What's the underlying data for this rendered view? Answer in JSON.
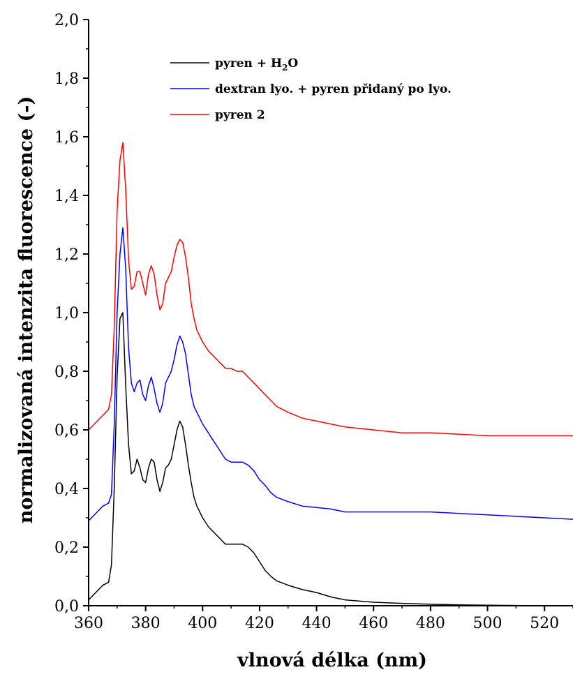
{
  "chart_data": {
    "type": "line",
    "title": "",
    "xlabel": "vlnová délka (nm)",
    "ylabel": "normalizovaná intenzita fluorescence (-)",
    "xlim": [
      360,
      530
    ],
    "ylim": [
      0.0,
      2.0
    ],
    "x_ticks": [
      360,
      380,
      400,
      420,
      440,
      460,
      480,
      500,
      520
    ],
    "x_tick_labels": [
      "360",
      "380",
      "400",
      "420",
      "440",
      "460",
      "480",
      "500",
      "520"
    ],
    "y_ticks": [
      0.0,
      0.2,
      0.4,
      0.6,
      0.8,
      1.0,
      1.2,
      1.4,
      1.6,
      1.8,
      2.0
    ],
    "y_tick_labels": [
      "0,0",
      "0,2",
      "0,4",
      "0,6",
      "0,8",
      "1,0",
      "1,2",
      "1,4",
      "1,6",
      "1,8",
      "2,0"
    ],
    "grid": false,
    "legend_position": "top-center",
    "series": [
      {
        "name": "pyren + H2O",
        "legend_main": "pyren + H",
        "legend_sub": "2",
        "legend_tail": "O",
        "color": "#000000",
        "x": [
          360,
          363,
          365,
          367,
          368,
          369,
          370,
          371,
          372,
          373,
          374,
          375,
          376,
          377,
          378,
          379,
          380,
          381,
          382,
          383,
          384,
          385,
          386,
          387,
          388,
          389,
          390,
          391,
          392,
          393,
          394,
          395,
          396,
          397,
          398,
          400,
          402,
          404,
          406,
          408,
          410,
          412,
          414,
          416,
          418,
          420,
          422,
          424,
          426,
          430,
          435,
          440,
          445,
          450,
          460,
          470,
          480,
          490,
          500,
          510,
          520,
          530
        ],
        "y": [
          0.02,
          0.05,
          0.07,
          0.08,
          0.14,
          0.4,
          0.78,
          0.98,
          1.0,
          0.75,
          0.55,
          0.45,
          0.46,
          0.5,
          0.47,
          0.43,
          0.42,
          0.47,
          0.5,
          0.49,
          0.43,
          0.39,
          0.42,
          0.47,
          0.48,
          0.5,
          0.55,
          0.6,
          0.63,
          0.61,
          0.55,
          0.48,
          0.42,
          0.37,
          0.34,
          0.3,
          0.27,
          0.25,
          0.23,
          0.21,
          0.21,
          0.21,
          0.21,
          0.2,
          0.18,
          0.15,
          0.12,
          0.1,
          0.085,
          0.07,
          0.055,
          0.045,
          0.03,
          0.02,
          0.012,
          0.008,
          0.005,
          0.003,
          0.002,
          0.001,
          0.0,
          0.0
        ]
      },
      {
        "name": "dextran lyo. + pyren přidaný po lyo.",
        "color": "#0000ff",
        "x": [
          360,
          363,
          365,
          367,
          368,
          369,
          370,
          371,
          372,
          373,
          374,
          375,
          376,
          377,
          378,
          379,
          380,
          381,
          382,
          383,
          384,
          385,
          386,
          387,
          388,
          389,
          390,
          391,
          392,
          393,
          394,
          395,
          396,
          397,
          398,
          400,
          402,
          404,
          406,
          408,
          410,
          412,
          414,
          416,
          418,
          420,
          422,
          424,
          426,
          430,
          435,
          440,
          445,
          450,
          460,
          470,
          480,
          490,
          500,
          510,
          520,
          530
        ],
        "y": [
          0.29,
          0.32,
          0.34,
          0.35,
          0.38,
          0.62,
          1.0,
          1.2,
          1.29,
          1.15,
          0.88,
          0.76,
          0.73,
          0.76,
          0.77,
          0.72,
          0.7,
          0.75,
          0.78,
          0.74,
          0.69,
          0.66,
          0.69,
          0.76,
          0.78,
          0.8,
          0.84,
          0.89,
          0.92,
          0.9,
          0.86,
          0.79,
          0.72,
          0.68,
          0.66,
          0.62,
          0.59,
          0.56,
          0.53,
          0.5,
          0.49,
          0.49,
          0.49,
          0.48,
          0.46,
          0.43,
          0.41,
          0.385,
          0.37,
          0.355,
          0.34,
          0.335,
          0.33,
          0.32,
          0.32,
          0.32,
          0.32,
          0.315,
          0.31,
          0.305,
          0.3,
          0.295
        ]
      },
      {
        "name": "pyren 2",
        "color": "#ff0000",
        "x": [
          360,
          363,
          365,
          367,
          368,
          369,
          370,
          371,
          372,
          373,
          374,
          375,
          376,
          377,
          378,
          379,
          380,
          381,
          382,
          383,
          384,
          385,
          386,
          387,
          388,
          389,
          390,
          391,
          392,
          393,
          394,
          395,
          396,
          397,
          398,
          400,
          402,
          404,
          406,
          408,
          410,
          412,
          414,
          416,
          418,
          420,
          422,
          424,
          426,
          430,
          435,
          440,
          445,
          450,
          460,
          470,
          480,
          490,
          500,
          510,
          520,
          530
        ],
        "y": [
          0.6,
          0.63,
          0.65,
          0.67,
          0.72,
          0.95,
          1.35,
          1.52,
          1.58,
          1.42,
          1.18,
          1.08,
          1.09,
          1.14,
          1.14,
          1.1,
          1.06,
          1.13,
          1.16,
          1.13,
          1.06,
          1.01,
          1.03,
          1.1,
          1.12,
          1.14,
          1.19,
          1.23,
          1.25,
          1.24,
          1.19,
          1.12,
          1.03,
          0.98,
          0.94,
          0.9,
          0.87,
          0.85,
          0.83,
          0.81,
          0.81,
          0.8,
          0.8,
          0.78,
          0.76,
          0.74,
          0.72,
          0.7,
          0.68,
          0.66,
          0.64,
          0.63,
          0.62,
          0.61,
          0.6,
          0.59,
          0.59,
          0.585,
          0.58,
          0.58,
          0.58,
          0.58
        ]
      }
    ]
  }
}
